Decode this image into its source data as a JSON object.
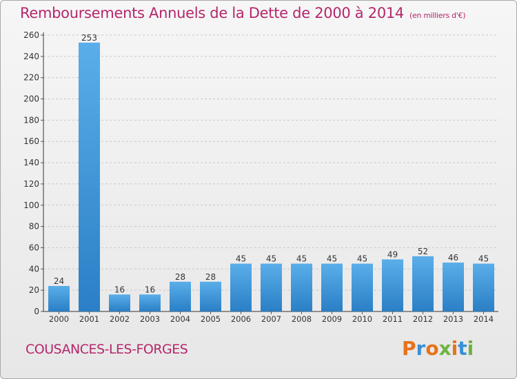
{
  "header": {
    "title": "Remboursements Annuels de la Dette de 2000 à 2014",
    "subtitle": "(en milliers d'€)"
  },
  "footer": {
    "commune": "COUSANCES-LES-FORGES",
    "logo_text": "Proxiti",
    "logo_colors": [
      "#e8711a",
      "#3a8fd9",
      "#e8711a",
      "#6db33f",
      "#e8711a",
      "#3a8fd9",
      "#6db33f"
    ]
  },
  "colors": {
    "accent": "#b5266b",
    "bar_light": "#5aaee9",
    "bar_dark": "#2a7fc6",
    "grid": "#c8c8c8"
  },
  "chart_data": {
    "type": "bar",
    "title": "Remboursements Annuels de la Dette de 2000 à 2014",
    "subtitle": "(en milliers d'€)",
    "categories": [
      "2000",
      "2001",
      "2002",
      "2003",
      "2004",
      "2005",
      "2006",
      "2007",
      "2008",
      "2009",
      "2010",
      "2011",
      "2012",
      "2013",
      "2014"
    ],
    "values": [
      24,
      253,
      16,
      16,
      28,
      28,
      45,
      45,
      45,
      45,
      45,
      49,
      52,
      46,
      45
    ],
    "xlabel": "",
    "ylabel": "",
    "ylim": [
      0,
      260
    ],
    "yticks": [
      0,
      20,
      40,
      60,
      80,
      100,
      120,
      140,
      160,
      180,
      200,
      220,
      240,
      260
    ],
    "grid": true,
    "data_labels": true
  }
}
